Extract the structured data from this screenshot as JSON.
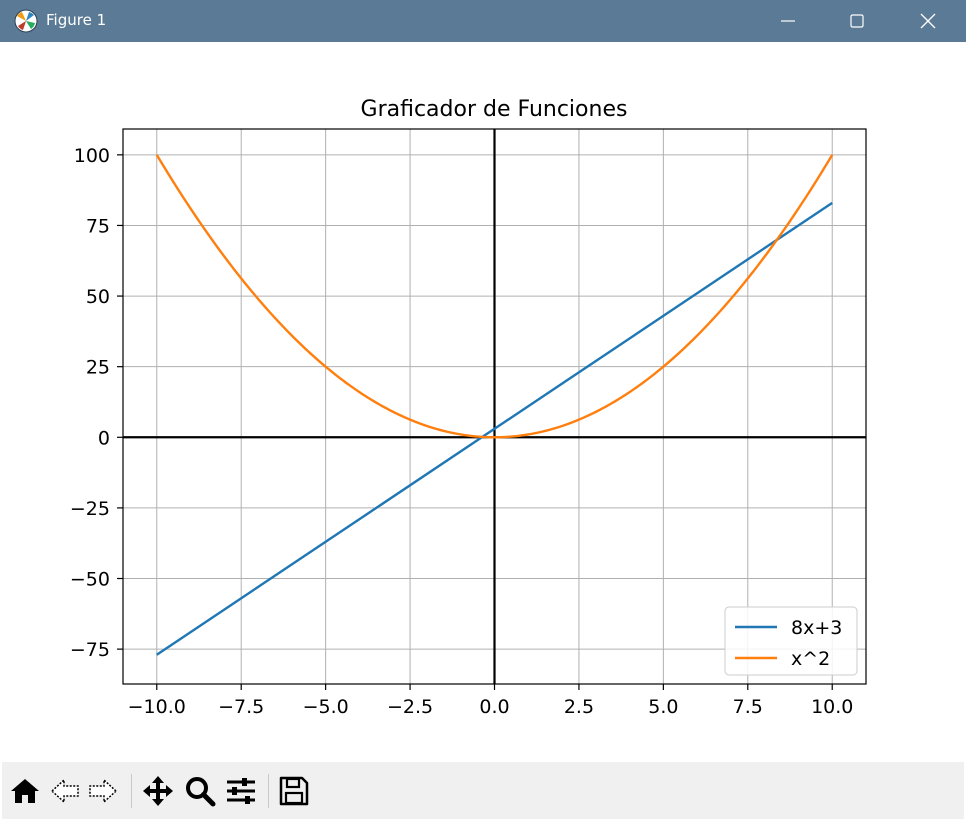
{
  "window": {
    "title": "Figure 1"
  },
  "toolbar": {
    "buttons": [
      "home-icon",
      "back-arrow-icon",
      "forward-arrow-icon",
      "pan-icon",
      "zoom-icon",
      "configure-subplots-icon",
      "save-icon"
    ]
  },
  "colors": {
    "titlebar": "#5b7a95",
    "series_linear": "#1f77b4",
    "series_quadratic": "#ff7f0e",
    "axes_lines": "#000000",
    "grid": "#b0b0b0"
  },
  "chart_data": {
    "type": "line",
    "title": "Graficador de Funciones",
    "xlabel": "",
    "ylabel": "",
    "xlim": [
      -11,
      11
    ],
    "ylim": [
      -87.35,
      109.15
    ],
    "xticks": [
      -10,
      -7.5,
      -5,
      -2.5,
      0,
      2.5,
      5,
      7.5,
      10
    ],
    "xtick_labels": [
      "−10.0",
      "−7.5",
      "−5.0",
      "−2.5",
      "0.0",
      "2.5",
      "5.0",
      "7.5",
      "10.0"
    ],
    "yticks": [
      -75,
      -50,
      -25,
      0,
      25,
      50,
      75,
      100
    ],
    "ytick_labels": [
      "−75",
      "−50",
      "−25",
      "0",
      "25",
      "50",
      "75",
      "100"
    ],
    "grid": true,
    "zero_axes_lines": true,
    "legend": {
      "placement": "lower-right"
    },
    "series": [
      {
        "name": "8x+3",
        "color": "#1f77b4",
        "x": [
          -10,
          10
        ],
        "y": [
          -77,
          83
        ]
      },
      {
        "name": "x^2",
        "color": "#ff7f0e",
        "x": [
          -10,
          -9,
          -8,
          -7,
          -6,
          -5,
          -4,
          -3,
          -2,
          -1,
          0,
          1,
          2,
          3,
          4,
          5,
          6,
          7,
          8,
          9,
          10
        ],
        "y": [
          100,
          81,
          64,
          49,
          36,
          25,
          16,
          9,
          4,
          1,
          0,
          1,
          4,
          9,
          16,
          25,
          36,
          49,
          64,
          81,
          100
        ]
      }
    ]
  }
}
